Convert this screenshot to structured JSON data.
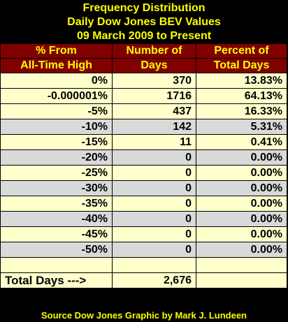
{
  "title_lines": [
    "Frequency Distribution",
    "Daily Dow Jones BEV Values",
    "09 March 2009 to Present"
  ],
  "colors": {
    "background": "#000000",
    "title_text": "#ffff00",
    "header_bg": "#800000",
    "header_text": "#ffff00",
    "row_light": "#ffffcc",
    "row_gray": "#d9d9d9"
  },
  "chart_data": {
    "type": "table",
    "title": "Frequency Distribution",
    "columns": [
      [
        "% From",
        "All-Time High"
      ],
      [
        "Number of",
        "Days"
      ],
      [
        "Percent of",
        "Total Days"
      ]
    ],
    "rows": [
      {
        "bin": "0%",
        "days": "370",
        "percent": "13.83%",
        "shade": "light"
      },
      {
        "bin": "-0.000001%",
        "days": "1716",
        "percent": "64.13%",
        "shade": "light"
      },
      {
        "bin": "-5%",
        "days": "437",
        "percent": "16.33%",
        "shade": "light"
      },
      {
        "bin": "-10%",
        "days": "142",
        "percent": "5.31%",
        "shade": "gray"
      },
      {
        "bin": "-15%",
        "days": "11",
        "percent": "0.41%",
        "shade": "light"
      },
      {
        "bin": "-20%",
        "days": "0",
        "percent": "0.00%",
        "shade": "gray"
      },
      {
        "bin": "-25%",
        "days": "0",
        "percent": "0.00%",
        "shade": "light"
      },
      {
        "bin": "-30%",
        "days": "0",
        "percent": "0.00%",
        "shade": "gray"
      },
      {
        "bin": "-35%",
        "days": "0",
        "percent": "0.00%",
        "shade": "light"
      },
      {
        "bin": "-40%",
        "days": "0",
        "percent": "0.00%",
        "shade": "gray"
      },
      {
        "bin": "-45%",
        "days": "0",
        "percent": "0.00%",
        "shade": "light"
      },
      {
        "bin": "-50%",
        "days": "0",
        "percent": "0.00%",
        "shade": "gray"
      },
      {
        "bin": "",
        "days": "",
        "percent": "",
        "shade": "light"
      }
    ],
    "total_label": "Total Days --->",
    "total_value": "2,676"
  },
  "source_text": "Source Dow Jones   Graphic by Mark J. Lundeen"
}
